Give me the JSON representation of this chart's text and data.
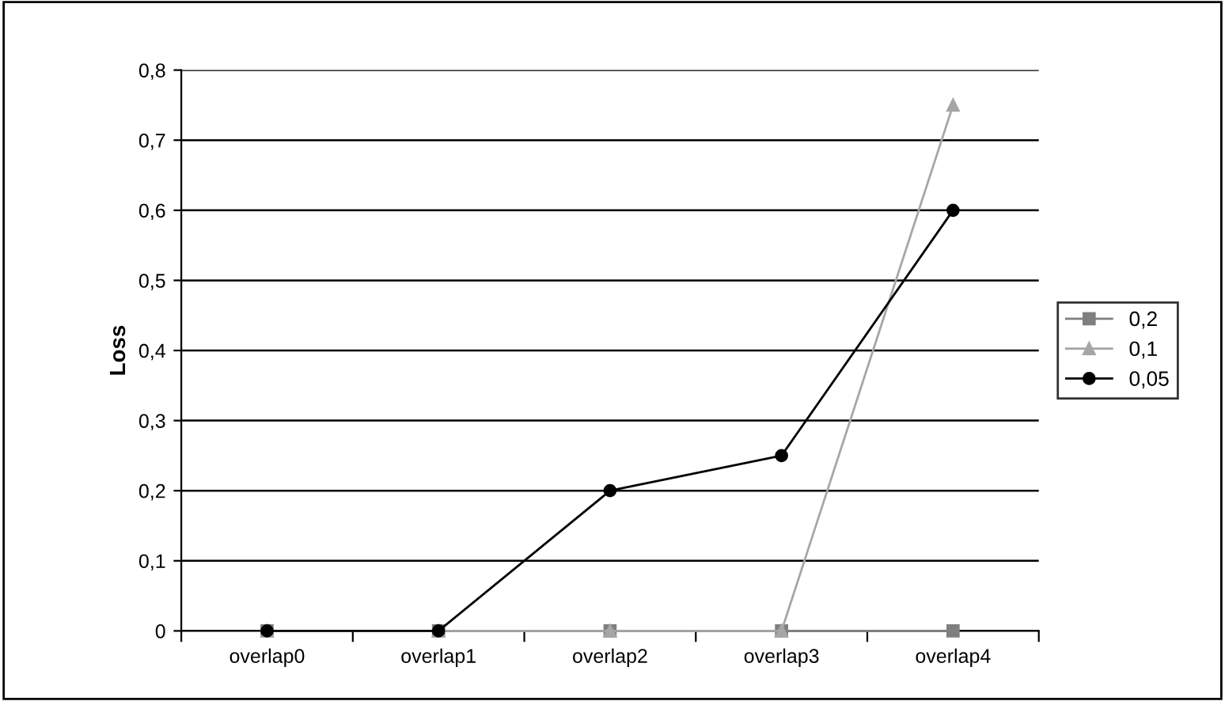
{
  "chart_data": {
    "type": "line",
    "ylabel": "Loss",
    "categories": [
      "overlap0",
      "overlap1",
      "overlap2",
      "overlap3",
      "overlap4"
    ],
    "series": [
      {
        "name": "0,2",
        "color": "#7f7f7f",
        "marker": "square",
        "values": [
          0,
          0,
          0,
          0,
          0
        ]
      },
      {
        "name": "0,1",
        "color": "#a6a6a6",
        "marker": "triangle",
        "values": [
          0,
          0,
          0,
          0,
          0.75
        ]
      },
      {
        "name": "0,05",
        "color": "#000000",
        "marker": "circle",
        "values": [
          0,
          0,
          0.2,
          0.25,
          0.6
        ]
      }
    ],
    "ylim": [
      0,
      0.8
    ],
    "yticks": [
      {
        "value": 0,
        "label": "0"
      },
      {
        "value": 0.1,
        "label": "0,1"
      },
      {
        "value": 0.2,
        "label": "0,2"
      },
      {
        "value": 0.3,
        "label": "0,3"
      },
      {
        "value": 0.4,
        "label": "0,4"
      },
      {
        "value": 0.5,
        "label": "0,5"
      },
      {
        "value": 0.6,
        "label": "0,6"
      },
      {
        "value": 0.7,
        "label": "0,7"
      },
      {
        "value": 0.8,
        "label": "0,8"
      }
    ],
    "grid": "y",
    "legend": "right",
    "line_style": "solid"
  }
}
